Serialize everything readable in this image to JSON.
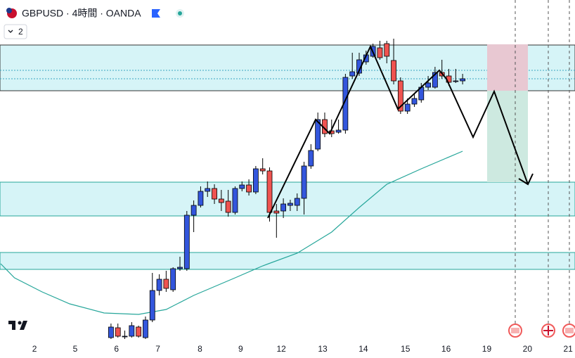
{
  "header": {
    "title": "GBPUSD · 4時間 · OANDA",
    "indicator_count": "2"
  },
  "chart_data": {
    "type": "candlestick",
    "xlim": [
      -16.1,
      67.3
    ],
    "ylim": [
      0,
      480
    ],
    "xticks": [
      {
        "value": -11.1,
        "label": "2"
      },
      {
        "value": -5.2,
        "label": "5"
      },
      {
        "value": 0.8,
        "label": "6"
      },
      {
        "value": 6.8,
        "label": "7"
      },
      {
        "value": 12.9,
        "label": "8"
      },
      {
        "value": 18.8,
        "label": "9"
      },
      {
        "value": 24.7,
        "label": "12"
      },
      {
        "value": 30.7,
        "label": "13"
      },
      {
        "value": 36.6,
        "label": "14"
      },
      {
        "value": 42.7,
        "label": "15"
      },
      {
        "value": 48.6,
        "label": "16"
      },
      {
        "value": 54.5,
        "label": "19"
      },
      {
        "value": 60.4,
        "label": "20"
      },
      {
        "value": 66.3,
        "label": "21"
      }
    ],
    "bull_color": "#3356dd",
    "bear_color": "#ef5350",
    "open": [
      0,
      14,
      2,
      2,
      15,
      0,
      25,
      67,
      83,
      68,
      98,
      98,
      174,
      188,
      208,
      212,
      197,
      194,
      178,
      212,
      217,
      207,
      240,
      237,
      180,
      180,
      188,
      188,
      198,
      244,
      268,
      310,
      294,
      292,
      295,
      372,
      376,
      392,
      400,
      412,
      418,
      394,
      365,
      322,
      332,
      338,
      356,
      356,
      377,
      372,
      365,
      365
    ],
    "high": [
      20,
      20,
      10,
      22,
      17,
      30,
      92,
      90,
      95,
      100,
      115,
      180,
      195,
      215,
      222,
      218,
      210,
      210,
      215,
      222,
      225,
      244,
      255,
      242,
      190,
      198,
      196,
      205,
      250,
      275,
      320,
      320,
      310,
      310,
      375,
      405,
      405,
      408,
      418,
      422,
      422,
      425,
      370,
      340,
      348,
      362,
      372,
      385,
      395,
      382,
      382,
      375
    ],
    "low": [
      -2,
      0,
      -2,
      0,
      0,
      -2,
      22,
      60,
      65,
      65,
      95,
      95,
      150,
      185,
      200,
      190,
      180,
      172,
      175,
      208,
      202,
      204,
      232,
      165,
      142,
      170,
      180,
      180,
      175,
      240,
      265,
      285,
      285,
      290,
      290,
      368,
      372,
      388,
      398,
      395,
      390,
      360,
      318,
      318,
      328,
      334,
      352,
      354,
      368,
      358,
      362,
      360
    ],
    "close": [
      15,
      2,
      2,
      17,
      2,
      25,
      67,
      83,
      70,
      98,
      100,
      174,
      188,
      208,
      212,
      197,
      192,
      178,
      212,
      217,
      207,
      240,
      237,
      178,
      177,
      190,
      191,
      198,
      244,
      266,
      310,
      290,
      290,
      295,
      370,
      378,
      395,
      402,
      414,
      398,
      400,
      365,
      322,
      332,
      340,
      356,
      362,
      377,
      372,
      363,
      365,
      368
    ],
    "ma": {
      "color": "#26a69a",
      "x": [
        -16,
        -14,
        -10,
        -6,
        -1,
        4,
        8,
        12,
        18,
        22,
        27,
        32,
        36,
        40,
        45,
        51
      ],
      "values": [
        105,
        85,
        65,
        48,
        35,
        33,
        40,
        60,
        85,
        102,
        120,
        150,
        185,
        218,
        240,
        265
      ]
    }
  }
}
